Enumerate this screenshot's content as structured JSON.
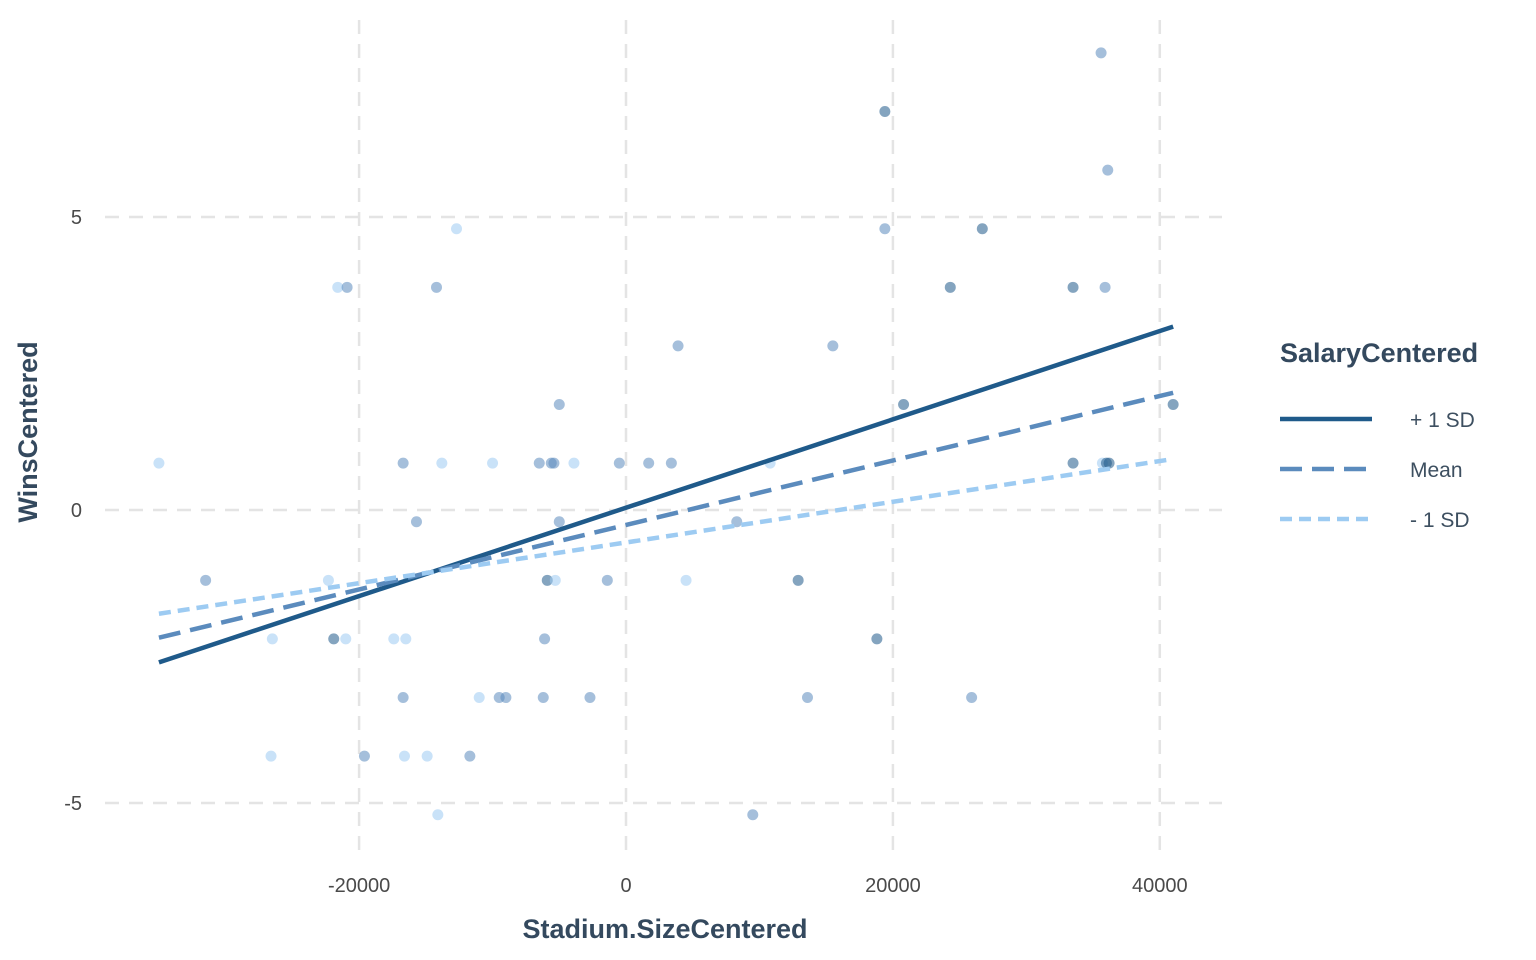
{
  "chart_data": {
    "type": "scatter",
    "title": "",
    "xlabel": "Stadium.SizeCentered",
    "ylabel": "WinsCentered",
    "xlim": [
      -35000,
      45000
    ],
    "ylim": [
      -5.8,
      8.1
    ],
    "xticks": [
      -20000,
      0,
      20000,
      40000
    ],
    "xtick_labels": [
      "-20000",
      "0",
      "20000",
      "40000"
    ],
    "yticks": [
      -5,
      0,
      5
    ],
    "ytick_labels": [
      "-5",
      "0",
      "5"
    ],
    "grid": true,
    "legend": {
      "title": "SalaryCentered",
      "position": "right"
    },
    "series": [
      {
        "name": "+ 1 SD",
        "color": "#1f5a8a",
        "dash": "solid",
        "line_start": [
          -35000,
          -2.6
        ],
        "line_end": [
          41000,
          3.13
        ]
      },
      {
        "name": "Mean",
        "color": "#5b8bbd",
        "dash": "dashed",
        "line_start": [
          -35000,
          -2.18
        ],
        "line_end": [
          41000,
          2.0
        ]
      },
      {
        "name": "- 1 SD",
        "color": "#9dcbf2",
        "dash": "dotted",
        "line_start": [
          -35000,
          -1.77
        ],
        "line_end": [
          41000,
          0.87
        ]
      }
    ],
    "points": [
      {
        "x": -35000,
        "y": 0.8,
        "shade": "light"
      },
      {
        "x": -31500,
        "y": -1.2,
        "shade": "mid"
      },
      {
        "x": -26500,
        "y": -2.2,
        "shade": "light"
      },
      {
        "x": -26600,
        "y": -4.2,
        "shade": "light"
      },
      {
        "x": -22300,
        "y": -1.2,
        "shade": "light"
      },
      {
        "x": -21900,
        "y": -2.2,
        "shade": "dark"
      },
      {
        "x": -21600,
        "y": 3.8,
        "shade": "light"
      },
      {
        "x": -20900,
        "y": 3.8,
        "shade": "mid"
      },
      {
        "x": -21000,
        "y": -2.2,
        "shade": "light"
      },
      {
        "x": -19600,
        "y": -4.2,
        "shade": "mid"
      },
      {
        "x": -17400,
        "y": -2.2,
        "shade": "light"
      },
      {
        "x": -16700,
        "y": 0.8,
        "shade": "mid"
      },
      {
        "x": -16700,
        "y": -3.2,
        "shade": "mid"
      },
      {
        "x": -16500,
        "y": -2.2,
        "shade": "light"
      },
      {
        "x": -16600,
        "y": -4.2,
        "shade": "light"
      },
      {
        "x": -15700,
        "y": -0.2,
        "shade": "mid"
      },
      {
        "x": -14900,
        "y": -4.2,
        "shade": "light"
      },
      {
        "x": -14200,
        "y": 3.8,
        "shade": "mid"
      },
      {
        "x": -14100,
        "y": -5.2,
        "shade": "light"
      },
      {
        "x": -13800,
        "y": 0.8,
        "shade": "light"
      },
      {
        "x": -12700,
        "y": 4.8,
        "shade": "light"
      },
      {
        "x": -11700,
        "y": -4.2,
        "shade": "mid"
      },
      {
        "x": -11000,
        "y": -3.2,
        "shade": "light"
      },
      {
        "x": -10000,
        "y": 0.8,
        "shade": "light"
      },
      {
        "x": -9500,
        "y": -3.2,
        "shade": "mid"
      },
      {
        "x": -9000,
        "y": -3.2,
        "shade": "mid"
      },
      {
        "x": -6500,
        "y": 0.8,
        "shade": "mid"
      },
      {
        "x": -6200,
        "y": -3.2,
        "shade": "mid"
      },
      {
        "x": -6100,
        "y": -2.2,
        "shade": "mid"
      },
      {
        "x": -5900,
        "y": -1.2,
        "shade": "dark"
      },
      {
        "x": -5600,
        "y": 0.8,
        "shade": "mid"
      },
      {
        "x": -5400,
        "y": 0.8,
        "shade": "mid"
      },
      {
        "x": -5300,
        "y": -1.2,
        "shade": "light"
      },
      {
        "x": -5000,
        "y": 1.8,
        "shade": "mid"
      },
      {
        "x": -5000,
        "y": -0.2,
        "shade": "mid"
      },
      {
        "x": -3900,
        "y": 0.8,
        "shade": "light"
      },
      {
        "x": -2700,
        "y": -3.2,
        "shade": "mid"
      },
      {
        "x": -1400,
        "y": -1.2,
        "shade": "mid"
      },
      {
        "x": -500,
        "y": 0.8,
        "shade": "mid"
      },
      {
        "x": 1700,
        "y": 0.8,
        "shade": "mid"
      },
      {
        "x": 3400,
        "y": 0.8,
        "shade": "mid"
      },
      {
        "x": 3900,
        "y": 2.8,
        "shade": "mid"
      },
      {
        "x": 4500,
        "y": -1.2,
        "shade": "light"
      },
      {
        "x": 8300,
        "y": -0.2,
        "shade": "mid"
      },
      {
        "x": 9500,
        "y": -5.2,
        "shade": "mid"
      },
      {
        "x": 10800,
        "y": 0.8,
        "shade": "light"
      },
      {
        "x": 12900,
        "y": -1.2,
        "shade": "dark"
      },
      {
        "x": 13600,
        "y": -3.2,
        "shade": "mid"
      },
      {
        "x": 15500,
        "y": 2.8,
        "shade": "mid"
      },
      {
        "x": 18800,
        "y": -2.2,
        "shade": "dark"
      },
      {
        "x": 19400,
        "y": 6.8,
        "shade": "dark"
      },
      {
        "x": 19400,
        "y": 4.8,
        "shade": "mid"
      },
      {
        "x": 20800,
        "y": 1.8,
        "shade": "dark"
      },
      {
        "x": 24300,
        "y": 3.8,
        "shade": "dark"
      },
      {
        "x": 25900,
        "y": -3.2,
        "shade": "mid"
      },
      {
        "x": 26700,
        "y": 4.8,
        "shade": "dark"
      },
      {
        "x": 33500,
        "y": 3.8,
        "shade": "dark"
      },
      {
        "x": 33500,
        "y": 0.8,
        "shade": "dark"
      },
      {
        "x": 35600,
        "y": 7.8,
        "shade": "mid"
      },
      {
        "x": 35700,
        "y": 0.8,
        "shade": "light"
      },
      {
        "x": 35900,
        "y": 3.8,
        "shade": "mid"
      },
      {
        "x": 36100,
        "y": 5.8,
        "shade": "mid"
      },
      {
        "x": 36000,
        "y": 0.8,
        "shade": "dark"
      },
      {
        "x": 36200,
        "y": 0.8,
        "shade": "dark"
      },
      {
        "x": 41000,
        "y": 1.8,
        "shade": "dark"
      }
    ],
    "shade_colors": {
      "dark": "#1f5a8a",
      "mid": "#5b8bbd",
      "light": "#9dcbf2"
    }
  }
}
